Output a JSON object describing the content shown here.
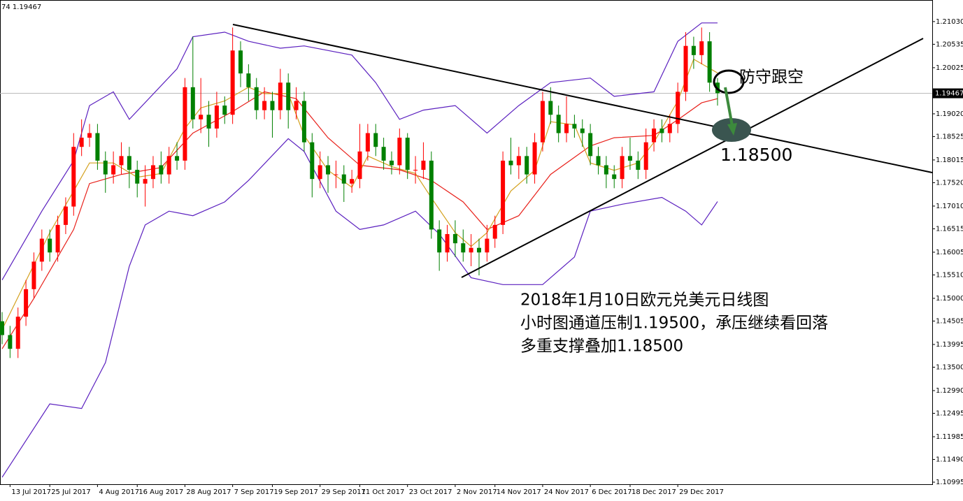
{
  "chart_data": {
    "type": "candlestick",
    "corner_label": "74 1.19467",
    "categories": [
      null,
      "13 Jul 2017",
      null,
      null,
      null,
      null,
      "25 Jul 2017",
      null,
      null,
      null,
      null,
      null,
      "4 Aug 2017",
      null,
      null,
      null,
      null,
      "16 Aug 2017",
      null,
      null,
      null,
      null,
      null,
      "28 Aug 2017",
      null,
      null,
      null,
      null,
      null,
      "7 Sep 2017",
      null,
      null,
      null,
      null,
      "19 Sep 2017",
      null,
      null,
      null,
      null,
      null,
      "29 Sep 2017",
      null,
      null,
      null,
      null,
      "11 Oct 2017",
      null,
      null,
      null,
      null,
      null,
      "23 Oct 2017",
      null,
      null,
      null,
      null,
      null,
      "2 Nov 2017",
      null,
      null,
      null,
      null,
      "14 Nov 2017",
      null,
      null,
      null,
      null,
      null,
      "24 Nov 2017",
      null,
      null,
      null,
      null,
      null,
      "6 Dec 2017",
      null,
      null,
      null,
      null,
      "18 Dec 2017",
      null,
      null,
      null,
      null,
      null,
      "29 Dec 2017",
      null,
      null,
      null,
      null,
      null
    ],
    "open": [
      1.145,
      1.142,
      1.139,
      1.146,
      1.152,
      1.158,
      1.163,
      1.16,
      1.166,
      1.17,
      1.183,
      1.185,
      1.186,
      1.18,
      1.177,
      1.179,
      1.181,
      1.178,
      1.175,
      1.176,
      1.179,
      1.177,
      1.181,
      1.18,
      1.196,
      1.189,
      1.19,
      1.187,
      1.192,
      1.19,
      1.204,
      1.199,
      1.196,
      1.191,
      1.193,
      1.191,
      1.197,
      1.191,
      1.193,
      1.184,
      1.176,
      1.179,
      1.177,
      1.177,
      1.175,
      1.176,
      1.182,
      1.186,
      1.183,
      1.18,
      1.179,
      1.185,
      1.178,
      1.178,
      1.18,
      1.165,
      1.16,
      1.164,
      1.162,
      1.16,
      1.161,
      1.16,
      1.163,
      1.166,
      1.18,
      1.179,
      1.181,
      1.177,
      1.184,
      1.193,
      1.19,
      1.186,
      1.188,
      1.187,
      1.186,
      1.181,
      1.179,
      1.177,
      1.176,
      1.181,
      1.18,
      1.178,
      1.184,
      1.187,
      1.186,
      1.188,
      1.195,
      1.205,
      1.203,
      1.206,
      1.197
    ],
    "high": [
      1.147,
      1.144,
      1.148,
      1.154,
      1.16,
      1.165,
      1.165,
      1.168,
      1.172,
      1.186,
      1.189,
      1.188,
      1.188,
      1.182,
      1.182,
      1.184,
      1.183,
      1.18,
      1.179,
      1.181,
      1.182,
      1.183,
      1.184,
      1.198,
      1.207,
      1.198,
      1.193,
      1.195,
      1.194,
      1.209,
      1.206,
      1.201,
      1.198,
      1.196,
      1.195,
      1.2,
      1.199,
      1.196,
      1.195,
      1.186,
      1.182,
      1.181,
      1.18,
      1.179,
      1.178,
      1.188,
      1.188,
      1.188,
      1.185,
      1.182,
      1.187,
      1.186,
      1.181,
      1.184,
      1.182,
      1.167,
      1.166,
      1.167,
      1.165,
      1.164,
      1.163,
      1.166,
      1.168,
      1.182,
      1.185,
      1.183,
      1.183,
      1.186,
      1.195,
      1.196,
      1.192,
      1.194,
      1.19,
      1.189,
      1.188,
      1.183,
      1.181,
      1.179,
      1.183,
      1.185,
      1.182,
      1.187,
      1.189,
      1.189,
      1.19,
      1.197,
      1.208,
      1.207,
      1.209,
      1.208,
      1.198
    ],
    "low": [
      1.14,
      1.137,
      1.137,
      1.144,
      1.15,
      1.156,
      1.158,
      1.158,
      1.164,
      1.168,
      1.181,
      1.183,
      1.178,
      1.173,
      1.175,
      1.177,
      1.174,
      1.172,
      1.17,
      1.174,
      1.175,
      1.175,
      1.178,
      1.178,
      1.187,
      1.186,
      1.183,
      1.185,
      1.188,
      1.188,
      1.196,
      1.193,
      1.189,
      1.189,
      1.185,
      1.189,
      1.187,
      1.189,
      1.182,
      1.172,
      1.174,
      1.173,
      1.174,
      1.171,
      1.173,
      1.174,
      1.18,
      1.181,
      1.178,
      1.177,
      1.177,
      1.176,
      1.175,
      1.176,
      1.163,
      1.156,
      1.158,
      1.159,
      1.158,
      1.157,
      1.155,
      1.158,
      1.161,
      1.164,
      1.177,
      1.176,
      1.175,
      1.175,
      1.182,
      1.188,
      1.184,
      1.184,
      1.185,
      1.183,
      1.179,
      1.177,
      1.174,
      1.174,
      1.174,
      1.178,
      1.176,
      1.176,
      1.182,
      1.184,
      1.184,
      1.186,
      1.193,
      1.2,
      1.201,
      1.195,
      1.192
    ],
    "close": [
      1.142,
      1.139,
      1.146,
      1.152,
      1.158,
      1.163,
      1.16,
      1.166,
      1.17,
      1.183,
      1.185,
      1.186,
      1.18,
      1.177,
      1.179,
      1.181,
      1.178,
      1.175,
      1.176,
      1.179,
      1.177,
      1.181,
      1.18,
      1.196,
      1.189,
      1.19,
      1.187,
      1.192,
      1.19,
      1.204,
      1.199,
      1.196,
      1.191,
      1.193,
      1.191,
      1.197,
      1.191,
      1.193,
      1.184,
      1.176,
      1.179,
      1.177,
      1.177,
      1.175,
      1.176,
      1.182,
      1.186,
      1.183,
      1.18,
      1.179,
      1.185,
      1.178,
      1.178,
      1.18,
      1.165,
      1.16,
      1.164,
      1.162,
      1.16,
      1.161,
      1.16,
      1.163,
      1.166,
      1.18,
      1.179,
      1.181,
      1.177,
      1.184,
      1.193,
      1.19,
      1.186,
      1.188,
      1.187,
      1.186,
      1.181,
      1.179,
      1.177,
      1.176,
      1.181,
      1.18,
      1.178,
      1.184,
      1.187,
      1.186,
      1.188,
      1.195,
      1.205,
      1.203,
      1.206,
      1.197,
      1.1947
    ],
    "up_color": "#ff0000",
    "down_color": "#008000",
    "indicators": [
      {
        "color": "#5a1fbf",
        "x": [
          0,
          5,
          9,
          11,
          14,
          16,
          22,
          24,
          28,
          31,
          35,
          38,
          44,
          47,
          50,
          53,
          57,
          61,
          65,
          69,
          74,
          77,
          82,
          85,
          88,
          90
        ],
        "values": [
          1.154,
          1.169,
          1.18,
          1.192,
          1.195,
          1.189,
          1.2,
          1.207,
          1.208,
          1.206,
          1.2045,
          1.205,
          1.203,
          1.197,
          1.189,
          1.191,
          1.192,
          1.186,
          1.192,
          1.197,
          1.198,
          1.194,
          1.195,
          1.206,
          1.21,
          1.21
        ]
      },
      {
        "color": "#5a1fbf",
        "x": [
          0,
          6,
          10,
          13,
          16,
          18,
          21,
          24,
          28,
          31,
          36,
          38,
          42,
          45,
          48,
          52,
          55,
          59,
          63,
          68,
          72,
          74,
          78,
          83,
          86,
          88,
          90
        ],
        "values": [
          1.111,
          1.127,
          1.126,
          1.136,
          1.157,
          1.166,
          1.169,
          1.168,
          1.171,
          1.1757,
          1.1848,
          1.182,
          1.169,
          1.165,
          1.166,
          1.169,
          1.164,
          1.1545,
          1.153,
          1.153,
          1.159,
          1.169,
          1.1705,
          1.172,
          1.169,
          1.166,
          1.1711
        ]
      },
      {
        "color": "#e8201a",
        "x": [
          0,
          4,
          9,
          11,
          15,
          20,
          24,
          29,
          33,
          37,
          41,
          45,
          50,
          54,
          58,
          61,
          65,
          69,
          74,
          77,
          82,
          85,
          88,
          90
        ],
        "values": [
          1.139,
          1.15,
          1.165,
          1.175,
          1.177,
          1.1785,
          1.186,
          1.1907,
          1.195,
          1.1935,
          1.185,
          1.179,
          1.178,
          1.1757,
          1.171,
          1.165,
          1.168,
          1.177,
          1.1832,
          1.185,
          1.1855,
          1.1889,
          1.1926,
          1.1935
        ]
      },
      {
        "color": "#d4a11e",
        "x": [
          0,
          3,
          6,
          9,
          11,
          14,
          17,
          20,
          23,
          25,
          28,
          31,
          33,
          36,
          38,
          41,
          44,
          46,
          49,
          52,
          54,
          57,
          59,
          61,
          64,
          67,
          69,
          72,
          74,
          77,
          80,
          82,
          85,
          87,
          90
        ],
        "values": [
          1.1432,
          1.1538,
          1.1643,
          1.1734,
          1.1795,
          1.1795,
          1.1764,
          1.1772,
          1.187,
          1.1915,
          1.193,
          1.196,
          1.1946,
          1.1946,
          1.1855,
          1.1779,
          1.1742,
          1.181,
          1.1787,
          1.1772,
          1.1719,
          1.1643,
          1.1613,
          1.1643,
          1.1734,
          1.1779,
          1.1885,
          1.1878,
          1.1795,
          1.1779,
          1.1795,
          1.184,
          1.193,
          1.2021,
          1.1991
        ]
      }
    ],
    "last_price": 1.19467,
    "ylim": [
      1.1095,
      1.215
    ],
    "yticks": [
      {
        "value": 1.2103,
        "label": "1.21030"
      },
      1.20535,
      1.20025,
      {
        "value": 1.1902,
        "label": "1.19020"
      },
      1.18525,
      1.18015,
      {
        "value": 1.1752,
        "label": "1.17520"
      },
      {
        "value": 1.1701,
        "label": "1.17010"
      },
      1.16515,
      1.16005,
      {
        "value": 1.1551,
        "label": "1.15510"
      },
      {
        "value": 1.15,
        "label": "1.15000"
      },
      1.14505,
      1.13995,
      {
        "value": 1.135,
        "label": "1.13500"
      },
      {
        "value": 1.1299,
        "label": "1.12990"
      },
      1.12495,
      1.11985,
      {
        "value": 1.1149,
        "label": "1.11490"
      },
      1.10995
    ],
    "annotations": {
      "defend": "防守跟空",
      "target": "1.18500",
      "lines": [
        "2018年1月10日欧元兑美元日线图",
        "小时图通道压制1.19500，承压继续看回落",
        "多重支撑叠加1.18500"
      ]
    }
  }
}
